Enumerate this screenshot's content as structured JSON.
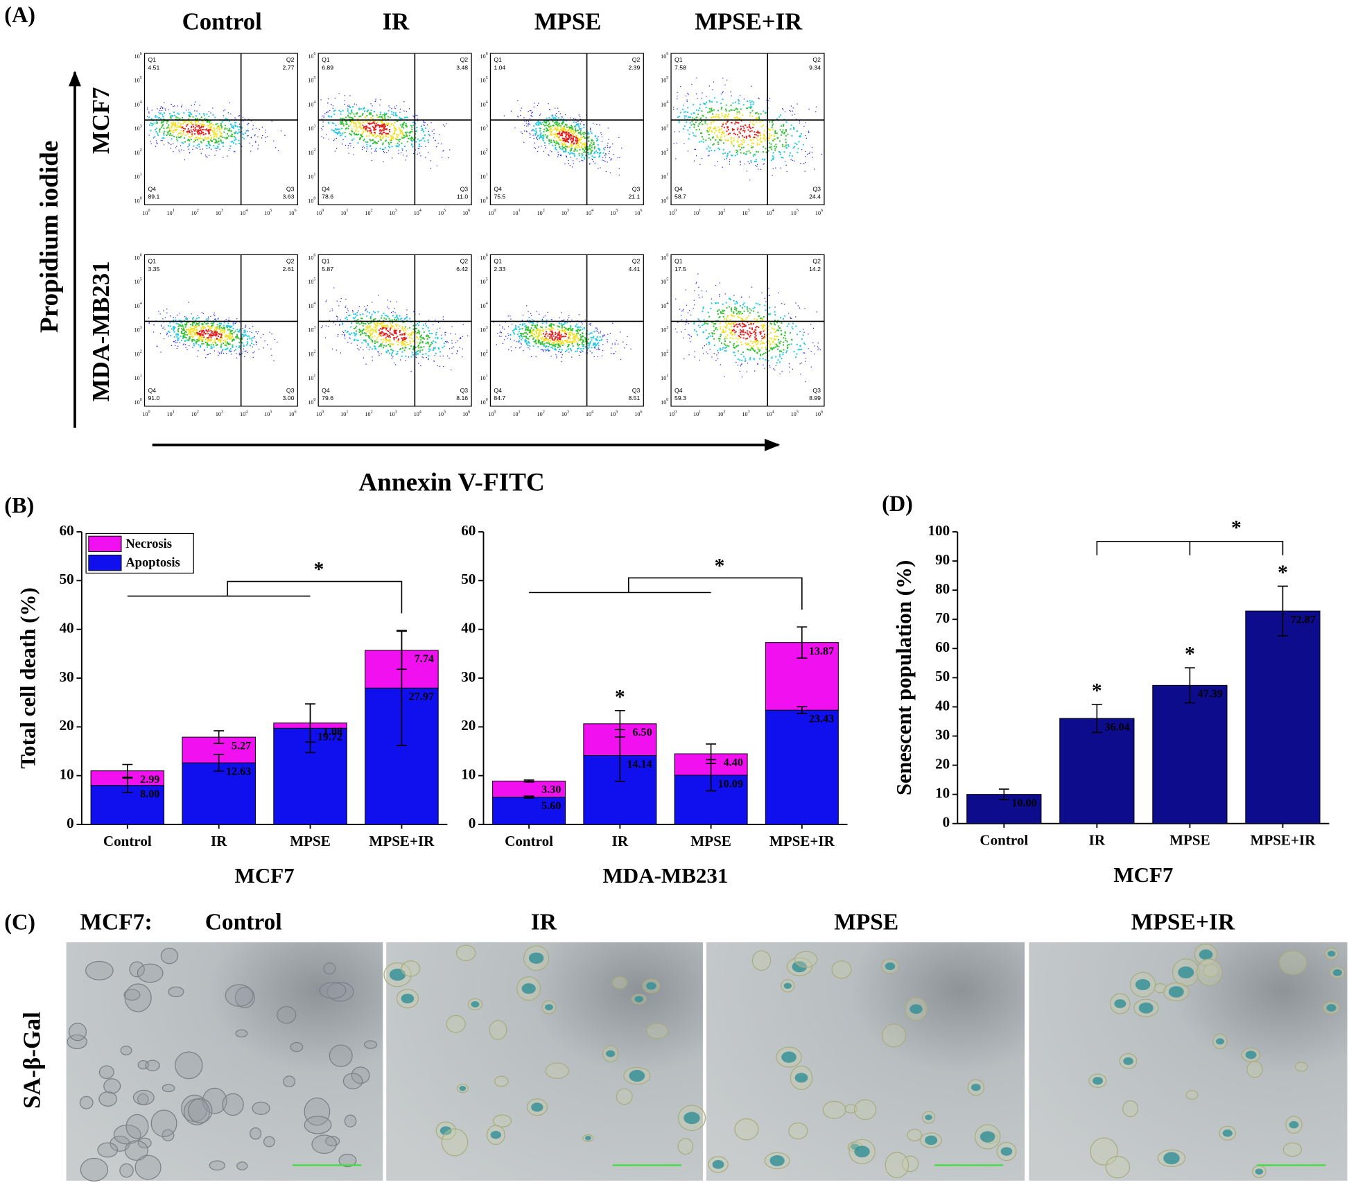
{
  "panel_labels": {
    "a": "(A)",
    "b": "(B)",
    "c": "(C)",
    "d": "(D)"
  },
  "flow": {
    "conditions": [
      "Control",
      "IR",
      "MPSE",
      "MPSE+IR"
    ],
    "cell_lines": [
      "MCF7",
      "MDA-MB231"
    ],
    "y_axis_label": "Propidium iodide",
    "x_axis_label": "Annexin V-FITC",
    "tick_base": "10",
    "tick_exponents": [
      0,
      1,
      2,
      3,
      4,
      5,
      6
    ],
    "quadrant_names": [
      "Q1",
      "Q2",
      "Q3",
      "Q4"
    ],
    "plots": [
      [
        [
          "4.51",
          "2.77",
          "3.63",
          "89.1"
        ],
        [
          "6.89",
          "3.48",
          "11.0",
          "78.6"
        ],
        [
          "1.04",
          "2.39",
          "21.1",
          "75.5"
        ],
        [
          "7.58",
          "9.34",
          "24.4",
          "58.7"
        ]
      ],
      [
        [
          "3.35",
          "2.61",
          "3.00",
          "91.0"
        ],
        [
          "5.87",
          "6.42",
          "8.16",
          "79.6"
        ],
        [
          "2.33",
          "4.41",
          "8.51",
          "84.7"
        ],
        [
          "17.5",
          "14.2",
          "8.99",
          "59.3"
        ]
      ]
    ]
  },
  "chart_data": [
    {
      "type": "stacked_bar",
      "categories": [
        "Control",
        "IR",
        "MPSE",
        "MPSE+IR"
      ],
      "x_label": "MCF7",
      "y_label": "Total cell death (%)",
      "ylim": [
        0,
        60
      ],
      "yticks": [
        0,
        10,
        20,
        30,
        40,
        50,
        60
      ],
      "legend": "top-left",
      "comparison_label": "*",
      "series": [
        {
          "name": "Apoptosis",
          "color": "#1010ee",
          "values": [
            8.0,
            12.63,
            19.72,
            27.97
          ],
          "value_labels": [
            "8.00",
            "12.63",
            "19.72",
            "27.97"
          ],
          "errors": [
            1.5,
            1.7,
            5.0,
            11.8
          ]
        },
        {
          "name": "Necrosis",
          "color": "#f010f0",
          "values": [
            2.99,
            5.27,
            1.08,
            7.74
          ],
          "value_labels": [
            "2.99",
            "5.27",
            "1.08",
            "7.74"
          ],
          "errors": [
            1.3,
            1.3,
            3.9,
            3.9
          ]
        }
      ]
    },
    {
      "type": "stacked_bar",
      "categories": [
        "Control",
        "IR",
        "MPSE",
        "MPSE+IR"
      ],
      "x_label": "MDA-MB231",
      "ylim": [
        0,
        60
      ],
      "yticks": [
        0,
        10,
        20,
        30,
        40,
        50,
        60
      ],
      "comparison_label": "*",
      "bar_labels": [
        null,
        "*",
        null,
        null
      ],
      "series": [
        {
          "name": "Apoptosis",
          "color": "#1010ee",
          "values": [
            5.6,
            14.14,
            10.09,
            23.43
          ],
          "value_labels": [
            "5.60",
            "14.14",
            "10.09",
            "23.43"
          ],
          "errors": [
            0.2,
            5.3,
            3.2,
            0.7
          ]
        },
        {
          "name": "Necrosis",
          "color": "#f010f0",
          "values": [
            3.3,
            6.5,
            4.4,
            13.87
          ],
          "value_labels": [
            "3.30",
            "6.50",
            "4.40",
            "13.87"
          ],
          "errors": [
            0.2,
            2.7,
            2.0,
            3.2
          ]
        }
      ]
    },
    {
      "type": "bar",
      "categories": [
        "Control",
        "IR",
        "MPSE",
        "MPSE+IR"
      ],
      "x_label": "MCF7",
      "y_label": "Senescent population (%)",
      "ylim": [
        0,
        100
      ],
      "yticks": [
        0,
        10,
        20,
        30,
        40,
        50,
        60,
        70,
        80,
        90,
        100
      ],
      "color": "#0c0c8c",
      "values": [
        10.0,
        36.04,
        47.39,
        72.87
      ],
      "value_labels": [
        "10.00",
        "36.04",
        "47.39",
        "72.87"
      ],
      "errors": [
        1.8,
        4.8,
        6.0,
        8.5
      ],
      "bar_labels": [
        null,
        "*",
        "*",
        "*"
      ],
      "comparison_label": "*"
    }
  ],
  "staining": {
    "cell_line": "MCF7:",
    "conditions": [
      "Control",
      "IR",
      "MPSE",
      "MPSE+IR"
    ],
    "stain_label": "SA-β-Gal"
  }
}
